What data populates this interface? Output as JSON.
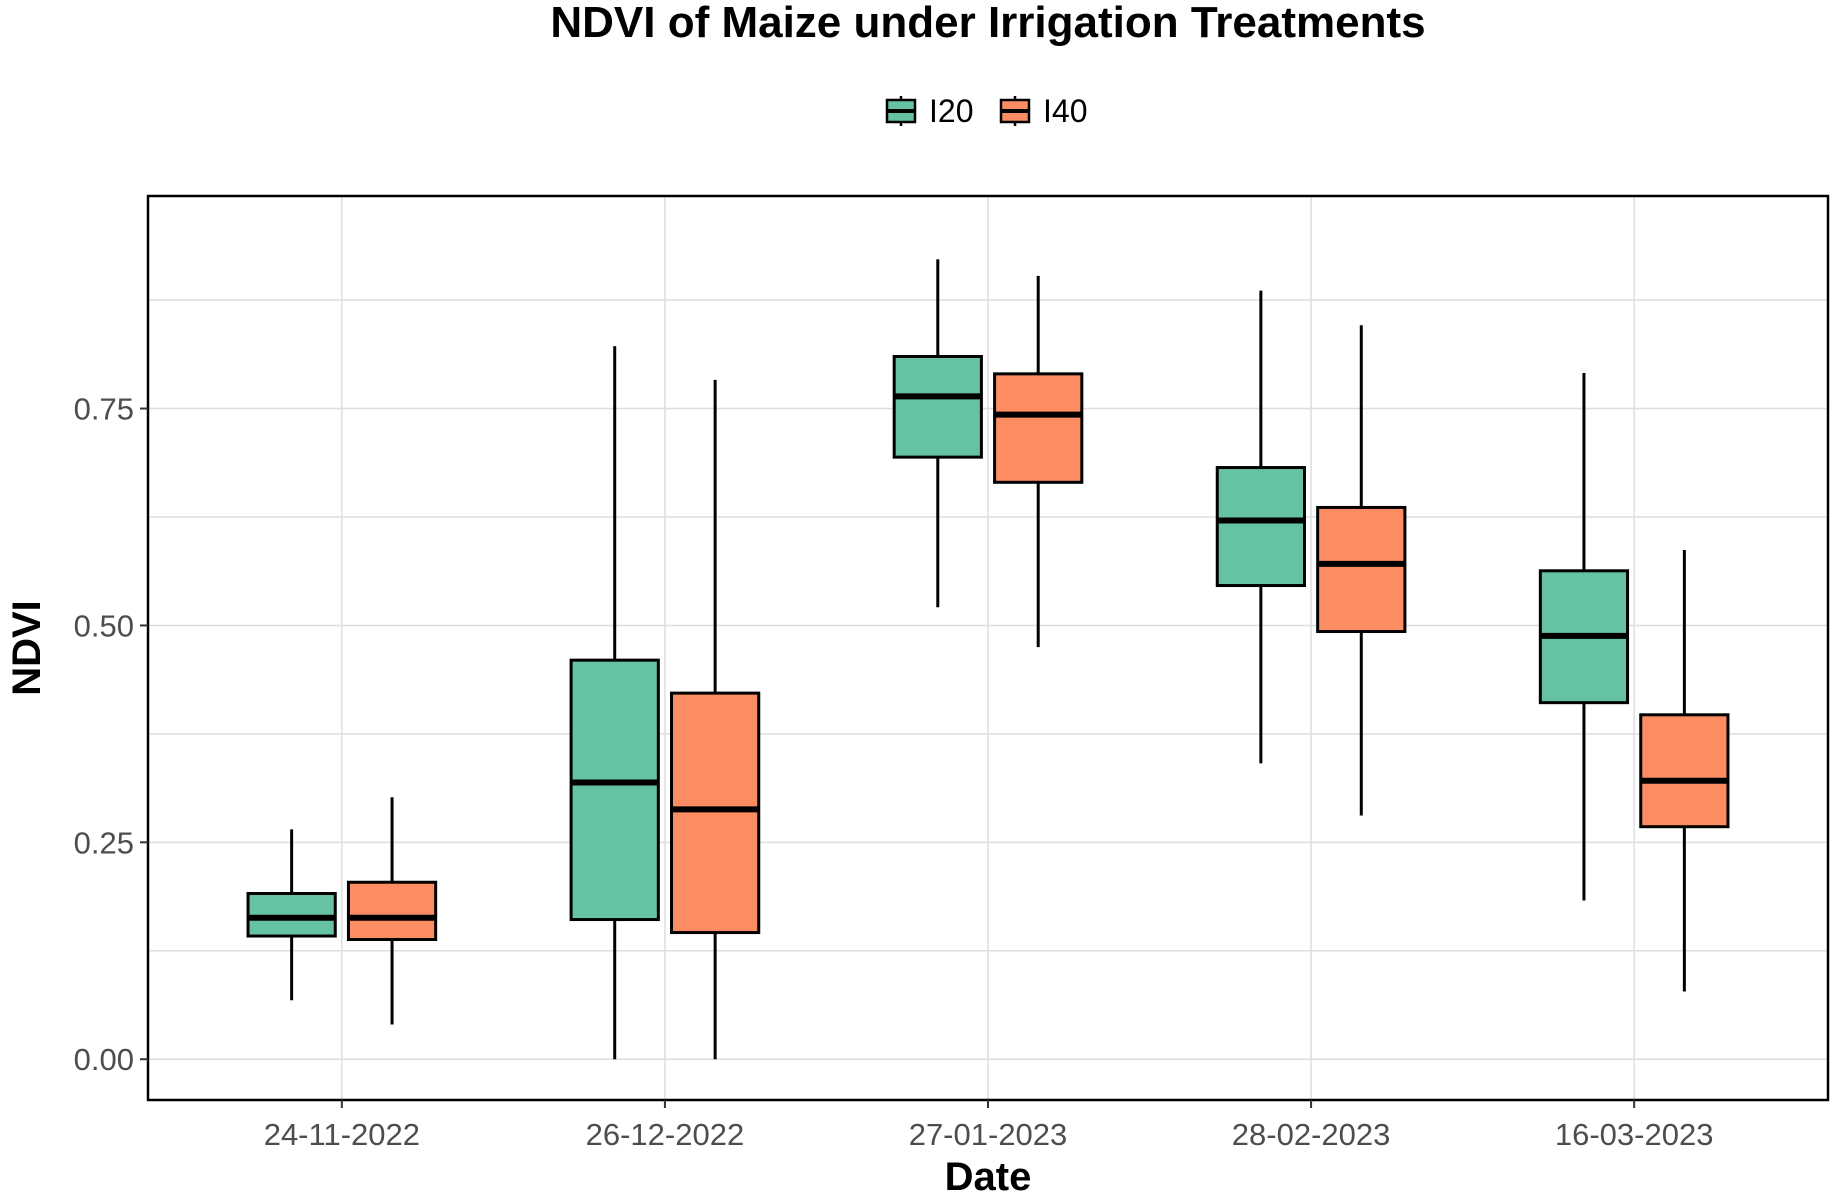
{
  "chart_data": {
    "type": "boxplot",
    "title": "NDVI of Maize under Irrigation Treatments",
    "xlabel": "Date",
    "ylabel": "NDVI",
    "ylim": [
      -0.047,
      0.995
    ],
    "yticks": [
      0.0,
      0.25,
      0.5,
      0.75
    ],
    "ytick_labels": [
      "0.00",
      "0.25",
      "0.50",
      "0.75"
    ],
    "grid": true,
    "legend_position": "top",
    "categories": [
      "24-11-2022",
      "26-12-2022",
      "27-01-2023",
      "28-02-2023",
      "16-03-2023"
    ],
    "series": [
      {
        "name": "I20",
        "color": "#66c2a5",
        "stats": [
          {
            "min": 0.068,
            "q1": 0.142,
            "median": 0.163,
            "q3": 0.191,
            "max": 0.265
          },
          {
            "min": 0.0,
            "q1": 0.161,
            "median": 0.319,
            "q3": 0.46,
            "max": 0.822
          },
          {
            "min": 0.521,
            "q1": 0.694,
            "median": 0.764,
            "q3": 0.81,
            "max": 0.922
          },
          {
            "min": 0.341,
            "q1": 0.546,
            "median": 0.621,
            "q3": 0.682,
            "max": 0.886
          },
          {
            "min": 0.183,
            "q1": 0.411,
            "median": 0.488,
            "q3": 0.563,
            "max": 0.791
          }
        ]
      },
      {
        "name": "I40",
        "color": "#fc8d62",
        "stats": [
          {
            "min": 0.04,
            "q1": 0.138,
            "median": 0.163,
            "q3": 0.204,
            "max": 0.302
          },
          {
            "min": 0.0,
            "q1": 0.146,
            "median": 0.288,
            "q3": 0.422,
            "max": 0.783
          },
          {
            "min": 0.475,
            "q1": 0.665,
            "median": 0.743,
            "q3": 0.79,
            "max": 0.903
          },
          {
            "min": 0.281,
            "q1": 0.493,
            "median": 0.571,
            "q3": 0.636,
            "max": 0.846
          },
          {
            "min": 0.078,
            "q1": 0.268,
            "median": 0.321,
            "q3": 0.397,
            "max": 0.587
          }
        ]
      }
    ]
  }
}
